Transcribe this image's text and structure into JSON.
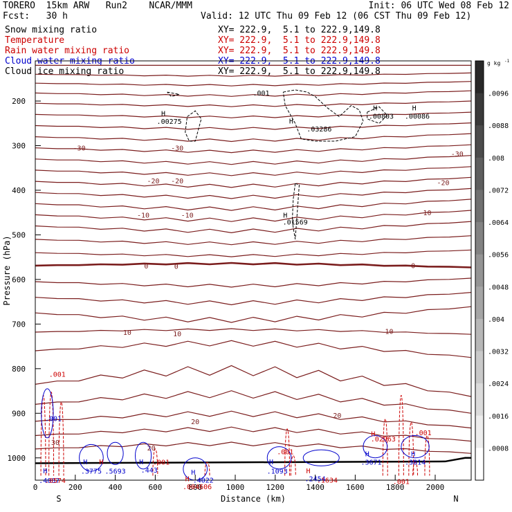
{
  "header": {
    "model": "TORERO  15km ARW   Run2    NCAR/MMM",
    "init": "Init: 06 UTC Wed 08 Feb 12",
    "fcst": "Fcst:   30 h",
    "valid": "Valid: 12 UTC Thu 09 Feb 12 (06 CST Thu 09 Feb 12)"
  },
  "fields": [
    {
      "name": "Snow mixing ratio",
      "xy": "",
      "color": "#000000"
    },
    {
      "name": "Temperature",
      "xy": "XY= 222.9,  5.1 to 222.9,149.8",
      "color": "#cc0000"
    },
    {
      "name": "Rain water mixing ratio",
      "xy": "XY= 222.9,  5.1 to 222.9,149.8",
      "color": "#cc0000"
    },
    {
      "name": "Cloud water mixing ratio",
      "xy": "XY= 222.9,  5.1 to 222.9,149.8",
      "color": "#0000cc"
    },
    {
      "name": "Cloud ice mixing ratio",
      "xy": "XY= 222.9,  5.1 to 222.9,149.8",
      "color": "#000000"
    }
  ],
  "xy_line1": "XY= 222.9,  5.1 to 222.9,149.8",
  "chart_data": {
    "type": "contour-cross-section",
    "xlabel": "Distance (km)",
    "ylabel": "Pressure (hPa)",
    "xlim": [
      0,
      2180
    ],
    "ylim": [
      1050,
      110
    ],
    "x_ticks": [
      0,
      200,
      400,
      600,
      800,
      1000,
      1200,
      1400,
      1600,
      1800,
      2000
    ],
    "y_ticks": [
      200,
      300,
      400,
      500,
      600,
      700,
      800,
      900,
      1000
    ],
    "endpoints": {
      "left": "S",
      "right": "N"
    },
    "colorbar": {
      "unit": "g kg",
      "unit_exp": "-1",
      "ticks": [
        ".0096",
        ".0088",
        ".008",
        ".0072",
        ".0064",
        ".0056",
        ".0048",
        ".004",
        ".0032",
        ".0024",
        ".0016",
        ".0008"
      ]
    },
    "temperature_labels": [
      {
        "text": "-30",
        "x": 220,
        "p": 305
      },
      {
        "text": "-30",
        "x": 710,
        "p": 305
      },
      {
        "text": "-30",
        "x": 2110,
        "p": 318
      },
      {
        "text": "-20",
        "x": 590,
        "p": 378
      },
      {
        "text": "-20",
        "x": 710,
        "p": 378
      },
      {
        "text": "-20",
        "x": 2040,
        "p": 382
      },
      {
        "text": "-10",
        "x": 540,
        "p": 455
      },
      {
        "text": "-10",
        "x": 760,
        "p": 455
      },
      {
        "text": "-10",
        "x": 1950,
        "p": 450
      },
      {
        "text": "0",
        "x": 555,
        "p": 569
      },
      {
        "text": "0",
        "x": 705,
        "p": 570
      },
      {
        "text": "0",
        "x": 1890,
        "p": 568
      },
      {
        "text": "10",
        "x": 460,
        "p": 718
      },
      {
        "text": "10",
        "x": 710,
        "p": 721
      },
      {
        "text": "10",
        "x": 1770,
        "p": 716
      },
      {
        "text": "20",
        "x": 800,
        "p": 918
      },
      {
        "text": "20",
        "x": 1510,
        "p": 904
      },
      {
        "text": "20",
        "x": 580,
        "p": 977
      },
      {
        "text": "30",
        "x": 100,
        "p": 965
      }
    ],
    "maxima": [
      {
        "text": ".00275",
        "x": 670,
        "p": 245,
        "color": "#000000"
      },
      {
        "text": ".03286",
        "x": 1420,
        "p": 262,
        "color": "#000000"
      },
      {
        "text": ".00803",
        "x": 1730,
        "p": 233,
        "color": "#000000"
      },
      {
        "text": ".00086",
        "x": 1910,
        "p": 233,
        "color": "#000000"
      },
      {
        "text": ".01569",
        "x": 1300,
        "p": 471,
        "color": "#000000"
      },
      {
        "text": ".001",
        "x": 1130,
        "p": 181,
        "color": "#000000"
      },
      {
        "text": ".001",
        "x": 110,
        "p": 812,
        "color": "#cc0000"
      },
      {
        "text": ".001",
        "x": 90,
        "p": 911,
        "color": "#0000cc"
      },
      {
        "text": ".001",
        "x": 630,
        "p": 1009,
        "color": "#cc0000"
      },
      {
        "text": ".001",
        "x": 1250,
        "p": 986,
        "color": "#cc0000"
      },
      {
        "text": ".001",
        "x": 1830,
        "p": 1052,
        "color": "#cc0000"
      },
      {
        "text": ".001",
        "x": 1940,
        "p": 943,
        "color": "#cc0000"
      },
      {
        "text": ".3775",
        "x": 280,
        "p": 1029,
        "color": "#0000cc"
      },
      {
        "text": ".5693",
        "x": 400,
        "p": 1029,
        "color": "#0000cc"
      },
      {
        "text": ".443",
        "x": 570,
        "p": 1027,
        "color": "#0000cc"
      },
      {
        "text": ".4022",
        "x": 840,
        "p": 1049,
        "color": "#0000cc"
      },
      {
        "text": ".004606",
        "x": 810,
        "p": 1064,
        "color": "#cc0000"
      },
      {
        "text": ".1093",
        "x": 1210,
        "p": 1029,
        "color": "#0000cc"
      },
      {
        "text": ".2454",
        "x": 1400,
        "p": 1046,
        "color": "#0000cc"
      },
      {
        "text": ".1634",
        "x": 1460,
        "p": 1049,
        "color": "#cc0000"
      },
      {
        "text": ".3671",
        "x": 1680,
        "p": 1009,
        "color": "#0000cc"
      },
      {
        "text": ".3814",
        "x": 1900,
        "p": 1009,
        "color": "#0000cc"
      },
      {
        "text": ".02963",
        "x": 1740,
        "p": 957,
        "color": "#cc0000"
      },
      {
        "text": ".4087",
        "x": 70,
        "p": 1050,
        "color": "#0000cc"
      },
      {
        "text": ".0574",
        "x": 100,
        "p": 1050,
        "color": "#cc0000"
      }
    ],
    "h_marks": [
      {
        "x": 640,
        "p": 227,
        "color": "#000000"
      },
      {
        "x": 1280,
        "p": 244,
        "color": "#000000"
      },
      {
        "x": 1700,
        "p": 215,
        "color": "#000000"
      },
      {
        "x": 1895,
        "p": 215,
        "color": "#000000"
      },
      {
        "x": 1250,
        "p": 455,
        "color": "#000000"
      },
      {
        "x": 250,
        "p": 1008,
        "color": "#0000cc"
      },
      {
        "x": 330,
        "p": 1008,
        "color": "#cc0000"
      },
      {
        "x": 530,
        "p": 1008,
        "color": "#0000cc"
      },
      {
        "x": 790,
        "p": 1031,
        "color": "#0000cc"
      },
      {
        "x": 760,
        "p": 1046,
        "color": "#cc0000"
      },
      {
        "x": 1180,
        "p": 1008,
        "color": "#0000cc"
      },
      {
        "x": 1365,
        "p": 1028,
        "color": "#cc0000"
      },
      {
        "x": 1660,
        "p": 990,
        "color": "#0000cc"
      },
      {
        "x": 1690,
        "p": 945,
        "color": "#cc0000"
      },
      {
        "x": 1890,
        "p": 990,
        "color": "#0000cc"
      },
      {
        "x": 50,
        "p": 1028,
        "color": "#0000cc"
      }
    ]
  }
}
